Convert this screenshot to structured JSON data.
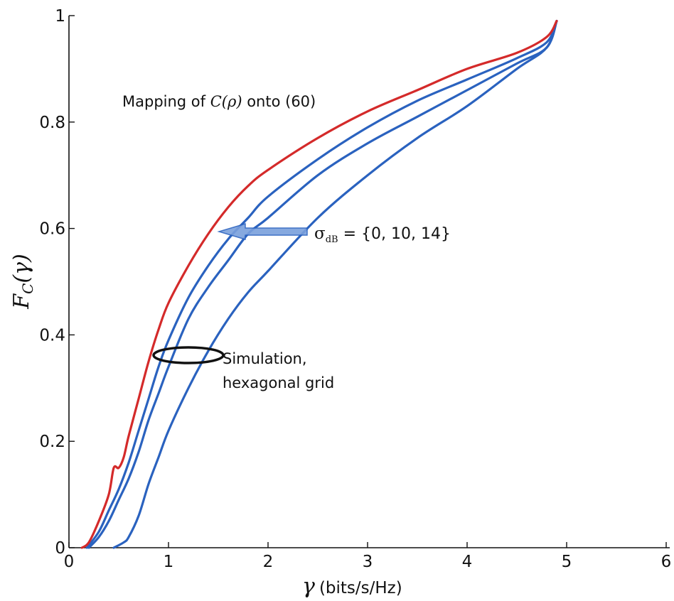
{
  "chart_data": {
    "type": "line",
    "xlabel_symbol": "γ",
    "xlabel_unit": "(bits/s/Hz)",
    "ylabel_symbol": "F",
    "ylabel_sub": "C",
    "ylabel_arg": "(γ)",
    "xlim": [
      0,
      6
    ],
    "ylim": [
      0,
      1
    ],
    "xticks": [
      "0",
      "1",
      "2",
      "3",
      "4",
      "5",
      "6"
    ],
    "yticks": [
      "0",
      "0.2",
      "0.4",
      "0.6",
      "0.8",
      "1"
    ],
    "grid": false,
    "series": [
      {
        "color": "#d42a2a",
        "x": [
          0.13,
          0.2,
          0.3,
          0.4,
          0.45,
          0.5,
          0.55,
          0.6,
          0.7,
          0.8,
          0.9,
          1.0,
          1.2,
          1.4,
          1.6,
          1.8,
          2.0,
          2.5,
          3.0,
          3.5,
          4.0,
          4.5,
          4.8,
          4.9
        ],
        "y": [
          0.0,
          0.01,
          0.05,
          0.1,
          0.15,
          0.15,
          0.17,
          0.21,
          0.28,
          0.35,
          0.41,
          0.46,
          0.53,
          0.59,
          0.64,
          0.68,
          0.71,
          0.77,
          0.82,
          0.86,
          0.9,
          0.93,
          0.96,
          0.99
        ]
      },
      {
        "color": "#2a62bf",
        "x": [
          0.18,
          0.3,
          0.4,
          0.5,
          0.6,
          0.7,
          0.8,
          0.9,
          1.0,
          1.2,
          1.4,
          1.6,
          1.8,
          2.0,
          2.5,
          3.0,
          3.5,
          4.0,
          4.5,
          4.8,
          4.9
        ],
        "y": [
          0.0,
          0.03,
          0.07,
          0.11,
          0.16,
          0.22,
          0.28,
          0.34,
          0.39,
          0.47,
          0.53,
          0.58,
          0.62,
          0.66,
          0.73,
          0.79,
          0.84,
          0.88,
          0.92,
          0.95,
          0.99
        ]
      },
      {
        "color": "#2a62bf",
        "x": [
          0.2,
          0.3,
          0.4,
          0.5,
          0.6,
          0.7,
          0.8,
          0.9,
          1.0,
          1.2,
          1.4,
          1.6,
          1.8,
          2.0,
          2.5,
          3.0,
          3.5,
          4.0,
          4.5,
          4.8,
          4.9
        ],
        "y": [
          0.0,
          0.02,
          0.05,
          0.09,
          0.13,
          0.18,
          0.24,
          0.29,
          0.34,
          0.43,
          0.49,
          0.54,
          0.59,
          0.62,
          0.7,
          0.76,
          0.81,
          0.86,
          0.91,
          0.94,
          0.99
        ]
      },
      {
        "color": "#2a62bf",
        "x": [
          0.45,
          0.55,
          0.6,
          0.7,
          0.8,
          0.9,
          1.0,
          1.2,
          1.4,
          1.6,
          1.8,
          2.0,
          2.5,
          3.0,
          3.5,
          4.0,
          4.5,
          4.8,
          4.9
        ],
        "y": [
          0.0,
          0.01,
          0.02,
          0.06,
          0.12,
          0.17,
          0.22,
          0.3,
          0.37,
          0.43,
          0.48,
          0.52,
          0.62,
          0.7,
          0.77,
          0.83,
          0.9,
          0.94,
          0.99
        ]
      }
    ],
    "annotations": {
      "mapping_prefix": "Mapping of ",
      "mapping_math": "C(ρ)",
      "mapping_suffix": " onto (60)",
      "sigma_symbol": "σ",
      "sigma_sub": "dB",
      "sigma_values": " = {0, 10, 14}",
      "sim_line1": "Simulation,",
      "sim_line2": "hexagonal grid"
    }
  },
  "colors": {
    "red": "#d42a2a",
    "blue": "#2a62bf",
    "arrow_fill": "#7aa0dc",
    "arrow_stroke": "#2a62bf"
  }
}
